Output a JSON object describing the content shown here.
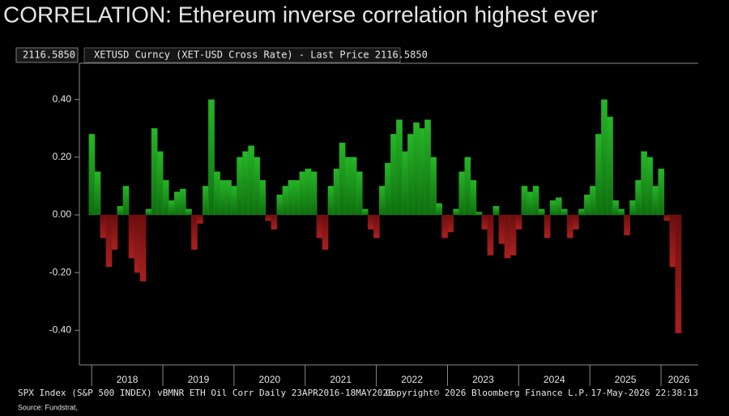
{
  "chart_data": {
    "type": "bar",
    "title": "CORRELATION: Ethereum inverse correlation highest ever",
    "last_price_tag": "2116.5850",
    "legend_text": "XETUSD Curncy (XET-USD Cross Rate) - Last Price 2116.5850",
    "footer_left": "SPX Index (S&P 500 INDEX) vBMNR ETH Oil Corr Daily 23APR2016-18MAY2026",
    "footer_center": "Copyright© 2026 Bloomberg Finance L.P.",
    "footer_right": "17-May-2026 22:38:13",
    "source": "Source: Fundstrat,",
    "positive_color": "#1e9a1e",
    "negative_color": "#8e1616",
    "x": [
      2018.0,
      2018.08,
      2018.16,
      2018.24,
      2018.32,
      2018.4,
      2018.48,
      2018.56,
      2018.64,
      2018.72,
      2018.8,
      2018.88,
      2018.96,
      2019.04,
      2019.12,
      2019.2,
      2019.28,
      2019.36,
      2019.44,
      2019.52,
      2019.6,
      2019.68,
      2019.76,
      2019.84,
      2019.92,
      2020.0,
      2020.08,
      2020.16,
      2020.24,
      2020.32,
      2020.4,
      2020.48,
      2020.56,
      2020.64,
      2020.72,
      2020.8,
      2020.88,
      2020.96,
      2021.04,
      2021.12,
      2021.2,
      2021.28,
      2021.36,
      2021.44,
      2021.52,
      2021.6,
      2021.68,
      2021.76,
      2021.84,
      2021.92,
      2022.0,
      2022.08,
      2022.16,
      2022.24,
      2022.32,
      2022.4,
      2022.48,
      2022.56,
      2022.64,
      2022.72,
      2022.8,
      2022.88,
      2022.96,
      2023.04,
      2023.12,
      2023.2,
      2023.28,
      2023.36,
      2023.44,
      2023.52,
      2023.6,
      2023.68,
      2023.76,
      2023.84,
      2023.92,
      2024.0,
      2024.08,
      2024.16,
      2024.24,
      2024.32,
      2024.4,
      2024.48,
      2024.56,
      2024.64,
      2024.72,
      2024.8,
      2024.88,
      2024.96,
      2025.04,
      2025.12,
      2025.2,
      2025.28,
      2025.36,
      2025.44,
      2025.52,
      2025.6,
      2025.68,
      2025.76,
      2025.84,
      2025.92,
      2026.0,
      2026.08,
      2026.16,
      2026.24
    ],
    "values": [
      0.28,
      0.15,
      -0.08,
      -0.18,
      -0.12,
      0.03,
      0.1,
      -0.15,
      -0.2,
      -0.23,
      0.02,
      0.3,
      0.22,
      0.12,
      0.05,
      0.08,
      0.09,
      0.02,
      -0.12,
      -0.03,
      0.1,
      0.4,
      0.15,
      0.12,
      0.12,
      0.1,
      0.2,
      0.22,
      0.24,
      0.2,
      0.12,
      -0.02,
      -0.05,
      0.07,
      0.1,
      0.12,
      0.12,
      0.15,
      0.16,
      0.15,
      -0.08,
      -0.12,
      0.1,
      0.16,
      0.25,
      0.2,
      0.2,
      0.15,
      0.02,
      -0.05,
      -0.08,
      0.1,
      0.18,
      0.28,
      0.33,
      0.22,
      0.28,
      0.32,
      0.3,
      0.33,
      0.2,
      0.04,
      -0.08,
      -0.06,
      0.02,
      0.15,
      0.2,
      0.12,
      0.01,
      -0.05,
      -0.14,
      0.03,
      -0.1,
      -0.15,
      -0.14,
      -0.05,
      0.1,
      0.08,
      0.1,
      0.02,
      -0.08,
      0.05,
      0.06,
      0.02,
      -0.08,
      -0.05,
      0.02,
      0.07,
      0.1,
      0.28,
      0.4,
      0.34,
      0.05,
      0.02,
      -0.07,
      0.05,
      0.12,
      0.22,
      0.2,
      0.1,
      0.16,
      -0.02,
      -0.18,
      -0.41
    ],
    "xlim": [
      2017.85,
      2026.5
    ],
    "ylim": [
      -0.52,
      0.52
    ],
    "yticks": [
      {
        "value": -0.4,
        "label": "-0.40"
      },
      {
        "value": -0.2,
        "label": "-0.20"
      },
      {
        "value": 0,
        "label": "0.00"
      },
      {
        "value": 0.2,
        "label": "0.20"
      },
      {
        "value": 0.4,
        "label": "0.40"
      }
    ],
    "xticks": [
      {
        "value": 2018,
        "label": "2018"
      },
      {
        "value": 2019,
        "label": "2019"
      },
      {
        "value": 2020,
        "label": "2020"
      },
      {
        "value": 2021,
        "label": "2021"
      },
      {
        "value": 2022,
        "label": "2022"
      },
      {
        "value": 2023,
        "label": "2023"
      },
      {
        "value": 2024,
        "label": "2024"
      },
      {
        "value": 2025,
        "label": "2025"
      },
      {
        "value": 2026,
        "label": "2026"
      }
    ]
  }
}
